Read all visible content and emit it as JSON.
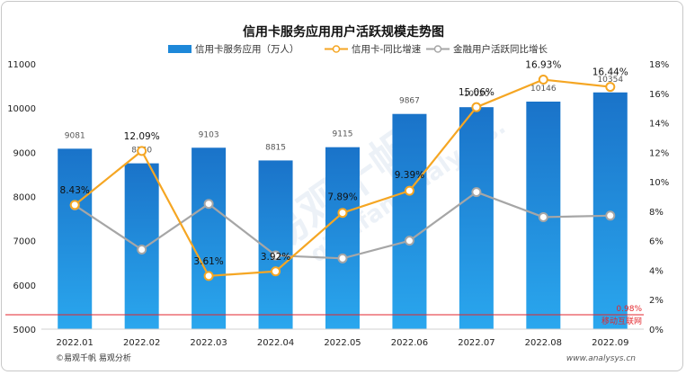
{
  "chart_data": {
    "type": "bar",
    "title": "信用卡服务应用用户活跃规模走势图",
    "categories": [
      "2022.01",
      "2022.02",
      "2022.03",
      "2022.04",
      "2022.05",
      "2022.06",
      "2022.07",
      "2022.08",
      "2022.09"
    ],
    "series": [
      {
        "name": "信用卡服务应用（万人）",
        "type": "bar",
        "axis": "left",
        "values": [
          9081,
          8750,
          9103,
          8815,
          9115,
          9867,
          10020,
          10146,
          10354
        ],
        "color": "#1e88d9"
      },
      {
        "name": "信用卡-同比增速",
        "type": "line",
        "axis": "right",
        "values": [
          8.43,
          12.09,
          3.61,
          3.92,
          7.89,
          9.39,
          15.06,
          16.93,
          16.44
        ],
        "labels": [
          "8.43%",
          "12.09%",
          "3.61%",
          "3.92%",
          "7.89%",
          "9.39%",
          "15.06%",
          "16.93%",
          "16.44%"
        ],
        "color": "#f5a623"
      },
      {
        "name": "金融用户活跃同比增长",
        "type": "line",
        "axis": "right",
        "values": [
          8.4,
          5.4,
          8.5,
          5.0,
          4.8,
          6.0,
          9.3,
          7.6,
          7.7
        ],
        "color": "#a6a6a6"
      }
    ],
    "left_axis": {
      "ylim": [
        5000,
        11000
      ],
      "ticks": [
        "5000",
        "6000",
        "7000",
        "8000",
        "9000",
        "10000",
        "11000"
      ]
    },
    "right_axis": {
      "ylim": [
        0,
        18
      ],
      "ticks": [
        "0%",
        "2%",
        "4%",
        "6%",
        "8%",
        "10%",
        "12%",
        "14%",
        "16%",
        "18%"
      ]
    },
    "reference_line": {
      "value": 0.98,
      "label": "0.98%",
      "note": "移动互联网",
      "color": "#e3262c"
    },
    "legend_position": "top",
    "grid": false
  },
  "footer": {
    "left": "©易观千帆 易观分析",
    "right": "www.analysys.cn"
  },
  "watermark": {
    "main": "易观千帆",
    "sub": "qianfan.analysys."
  }
}
